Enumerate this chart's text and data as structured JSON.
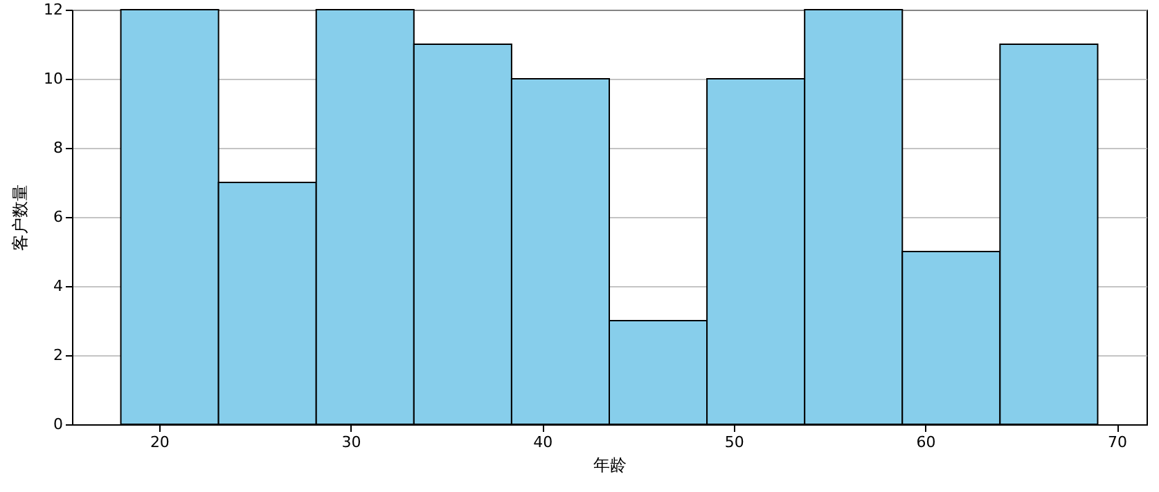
{
  "chart_data": {
    "type": "histogram",
    "xlabel": "年龄",
    "ylabel": "客户数量",
    "bins": [
      18,
      23.1,
      28.2,
      33.3,
      38.4,
      43.5,
      48.6,
      53.7,
      58.8,
      63.9,
      69
    ],
    "values": [
      12,
      7,
      12,
      11,
      10,
      3,
      10,
      12,
      5,
      11
    ],
    "color": "#87ceeb",
    "xlim": [
      15.45,
      71.55
    ],
    "xticks": [
      20,
      30,
      40,
      50,
      60,
      70
    ],
    "ylim": [
      0,
      12
    ],
    "yticks": [
      0,
      2,
      4,
      6,
      8,
      10,
      12
    ],
    "grid": "y"
  }
}
